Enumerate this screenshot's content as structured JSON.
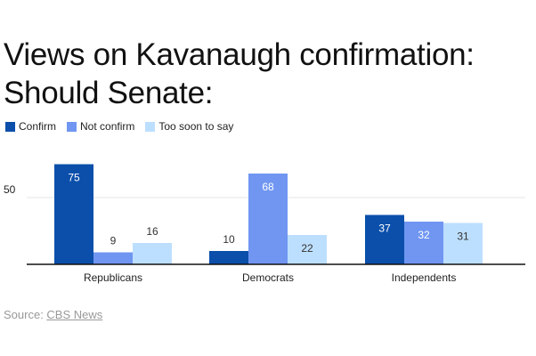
{
  "title": "Views on Kavanaugh confirmation: Should Senate:",
  "source_prefix": "Source: ",
  "source_link": "CBS News",
  "colors": {
    "Confirm": "#0b4fab",
    "Not confirm": "#7096f2",
    "Too soon to say": "#bddfff",
    "label_dark": "#ffffff",
    "label_light": "#333333",
    "grid": "#e4e4e4",
    "axis": "#111111"
  },
  "chart_data": {
    "type": "bar",
    "categories": [
      "Republicans",
      "Democrats",
      "Independents"
    ],
    "series": [
      {
        "name": "Confirm",
        "values": [
          75,
          10,
          37
        ]
      },
      {
        "name": "Not confirm",
        "values": [
          9,
          68,
          32
        ]
      },
      {
        "name": "Too soon to say",
        "values": [
          16,
          22,
          31
        ]
      }
    ],
    "ylim": [
      0,
      80
    ],
    "yticks": [
      50
    ],
    "grid": true,
    "legend": "top-left",
    "xlabel": "",
    "ylabel": ""
  }
}
